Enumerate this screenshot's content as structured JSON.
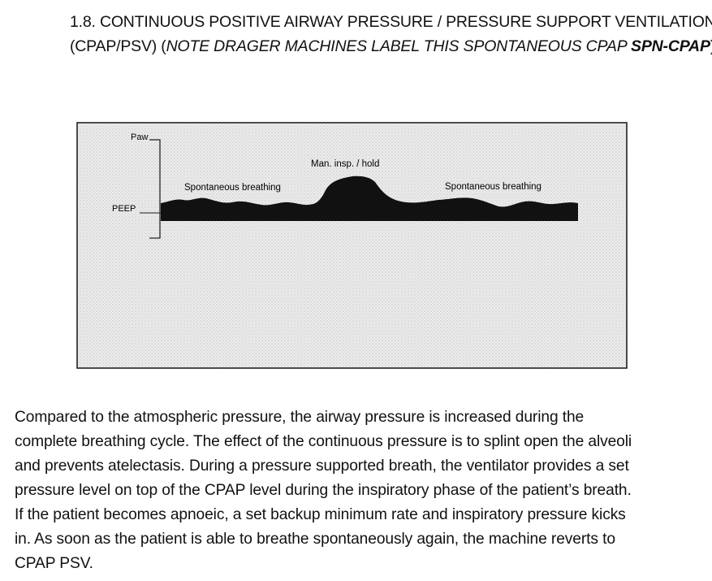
{
  "heading": {
    "line1": "1.8. CONTINUOUS POSITIVE AIRWAY PRESSURE / PRESSURE SUPPORT VENTILATION",
    "line2_start": "(CPAP/PSV) (",
    "line2_italic": "NOTE DRAGER MACHINES LABEL THIS SPONTANEOUS CPAP ",
    "line2_bold": "SPN-CPAP",
    "line2_end": ")"
  },
  "figure": {
    "y_axis_label": "Paw",
    "peep_label": "PEEP",
    "annotation_left": "Spontaneous breathing",
    "annotation_middle": "Man. insp. / hold",
    "annotation_right": "Spontaneous breathing",
    "colors": {
      "frame": "#222222",
      "background": "#e9e9e9",
      "waveform": "#111111"
    }
  },
  "body": {
    "lines": [
      "Compared to the atmospheric pressure, the airway pressure is increased during the",
      "complete breathing cycle. The effect of the continuous pressure is to splint open the alveoli",
      "and prevents atelectasis. During a pressure supported breath, the ventilator provides a set",
      "pressure level on top of the CPAP level during the inspiratory phase of the patient’s breath.",
      "If the patient becomes apnoeic, a set backup minimum rate and inspiratory pressure kicks",
      "in. As soon as the patient is able to breathe spontaneously again, the machine reverts to",
      "CPAP PSV."
    ]
  }
}
